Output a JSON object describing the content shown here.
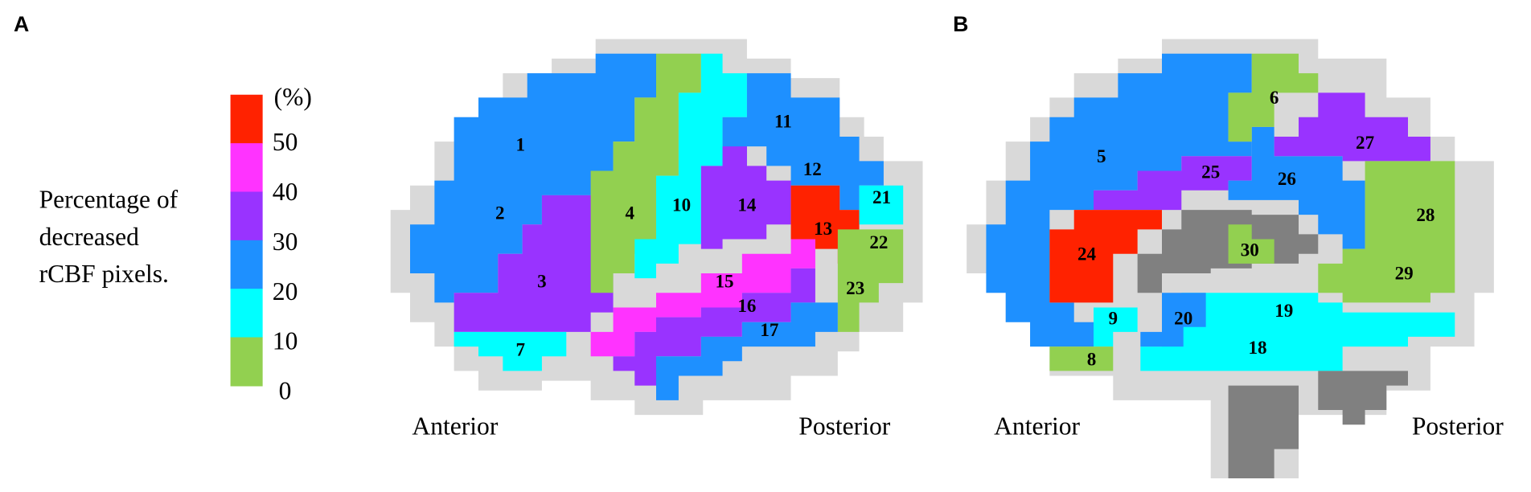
{
  "panels": [
    {
      "label": "A",
      "anterior": "Anterior",
      "posterior": "Posterior",
      "regions": [
        {
          "label": "1",
          "color": "#1e90ff"
        },
        {
          "label": "2",
          "color": "#1e90ff"
        },
        {
          "label": "3",
          "color": "#9933ff"
        },
        {
          "label": "4",
          "color": "#92d050"
        },
        {
          "label": "7",
          "color": "#00ffff"
        },
        {
          "label": "10",
          "color": "#00ffff"
        },
        {
          "label": "11",
          "color": "#1e90ff"
        },
        {
          "label": "12",
          "color": "#1e90ff"
        },
        {
          "label": "13",
          "color": "#ff2200"
        },
        {
          "label": "14",
          "color": "#9933ff"
        },
        {
          "label": "15",
          "color": "#ff33ff"
        },
        {
          "label": "16",
          "color": "#9933ff"
        },
        {
          "label": "17",
          "color": "#1e90ff"
        },
        {
          "label": "21",
          "color": "#00ffff"
        },
        {
          "label": "22",
          "color": "#92d050"
        },
        {
          "label": "23",
          "color": "#92d050"
        }
      ]
    },
    {
      "label": "B",
      "anterior": "Anterior",
      "posterior": "Posterior",
      "regions": [
        {
          "label": "5",
          "color": "#1e90ff"
        },
        {
          "label": "6",
          "color": "#92d050"
        },
        {
          "label": "8",
          "color": "#92d050"
        },
        {
          "label": "9",
          "color": "#00ffff"
        },
        {
          "label": "18",
          "color": "#00ffff"
        },
        {
          "label": "19",
          "color": "#00ffff"
        },
        {
          "label": "20",
          "color": "#1e90ff"
        },
        {
          "label": "24",
          "color": "#ff2200"
        },
        {
          "label": "25",
          "color": "#9933ff"
        },
        {
          "label": "26",
          "color": "#1e90ff"
        },
        {
          "label": "27",
          "color": "#9933ff"
        },
        {
          "label": "28",
          "color": "#92d050"
        },
        {
          "label": "29",
          "color": "#92d050"
        },
        {
          "label": "30",
          "color": "#92d050"
        }
      ]
    }
  ],
  "legend": {
    "unit": "(%)",
    "title": [
      "Percentage of",
      "decreased",
      "rCBF pixels."
    ],
    "ticks": [
      50,
      40,
      30,
      20,
      10,
      0
    ],
    "colors": [
      "#ff2200",
      "#ff33ff",
      "#9933ff",
      "#1e90ff",
      "#00ffff",
      "#92d050"
    ]
  }
}
